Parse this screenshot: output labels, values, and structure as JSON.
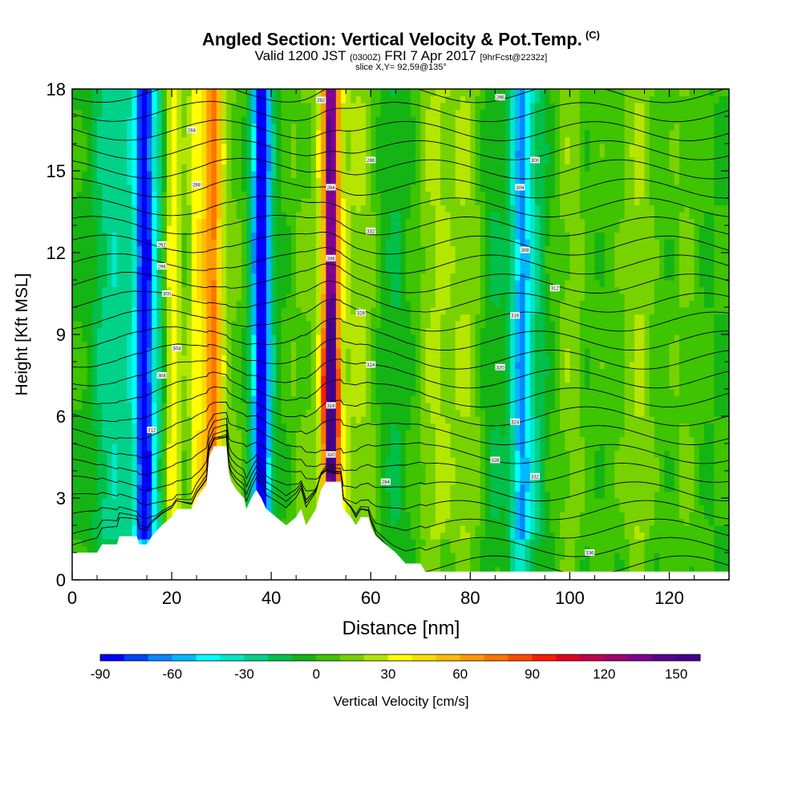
{
  "title": {
    "main": "Angled Section: Vertical Velocity & Pot.Temp.",
    "unit": "(C)",
    "valid_prefix": "Valid 1200 JST",
    "valid_small": "(0300Z)",
    "valid_date": "FRI 7 Apr 2017",
    "valid_fcst": "[9hrFcst@2232z]",
    "slice": "slice X,Y= 92,59@135°"
  },
  "chart_data": {
    "type": "heatmap",
    "xlabel": "Distance [nm]",
    "ylabel": "Height [Kft MSL]",
    "xlim": [
      0,
      132
    ],
    "ylim": [
      0,
      18
    ],
    "x_ticks": [
      "0",
      "20",
      "40",
      "60",
      "80",
      "100",
      "120"
    ],
    "x_tick_values": [
      0,
      20,
      40,
      60,
      80,
      100,
      120
    ],
    "y_ticks": [
      "0",
      "3",
      "6",
      "9",
      "12",
      "15",
      "18"
    ],
    "y_tick_values": [
      0,
      3,
      6,
      9,
      12,
      15,
      18
    ],
    "colorbar": {
      "label": "Vertical Velocity [cm/s]",
      "tick_labels": [
        "-90",
        "-60",
        "-30",
        "0",
        "30",
        "60",
        "90",
        "120",
        "150"
      ],
      "tick_values": [
        -90,
        -60,
        -30,
        0,
        30,
        60,
        90,
        120,
        150
      ],
      "min": -90,
      "max": 160,
      "step": 10,
      "colors": [
        "#0000ff",
        "#0040ff",
        "#0a86ff",
        "#00b8ff",
        "#00ffff",
        "#00e8c8",
        "#00d28a",
        "#00c04a",
        "#14b414",
        "#3ec400",
        "#78d200",
        "#b4e600",
        "#ffff00",
        "#ffdc00",
        "#ffbc00",
        "#ff9a00",
        "#ff7300",
        "#ff4800",
        "#ff1a00",
        "#e00020",
        "#c0004a",
        "#a00070",
        "#800090",
        "#5a0090",
        "#44008a"
      ]
    },
    "terrain_kft": [
      [
        0,
        1.0
      ],
      [
        5,
        1.0
      ],
      [
        6,
        1.3
      ],
      [
        9,
        1.3
      ],
      [
        9.5,
        1.6
      ],
      [
        13,
        1.6
      ],
      [
        13.5,
        1.3
      ],
      [
        15,
        1.3
      ],
      [
        16,
        1.6
      ],
      [
        18,
        2.0
      ],
      [
        20,
        2.3
      ],
      [
        21,
        2.6
      ],
      [
        24,
        2.6
      ],
      [
        25,
        3.0
      ],
      [
        27,
        3.5
      ],
      [
        27.5,
        4.5
      ],
      [
        28.5,
        4.9
      ],
      [
        31,
        4.9
      ],
      [
        31.5,
        3.9
      ],
      [
        32,
        3.6
      ],
      [
        33,
        3.3
      ],
      [
        34.5,
        3.0
      ],
      [
        35,
        2.6
      ],
      [
        36,
        3.0
      ],
      [
        37,
        3.3
      ],
      [
        38,
        3.0
      ],
      [
        39,
        2.6
      ],
      [
        41,
        2.3
      ],
      [
        43,
        2.0
      ],
      [
        45,
        2.3
      ],
      [
        46,
        2.6
      ],
      [
        47,
        2.0
      ],
      [
        48,
        2.3
      ],
      [
        49,
        2.6
      ],
      [
        50,
        3.3
      ],
      [
        51,
        3.6
      ],
      [
        54,
        3.6
      ],
      [
        54.5,
        2.6
      ],
      [
        56,
        2.3
      ],
      [
        57,
        2.0
      ],
      [
        58,
        2.3
      ],
      [
        59.5,
        2.3
      ],
      [
        60,
        2.0
      ],
      [
        61,
        1.6
      ],
      [
        63,
        1.3
      ],
      [
        65,
        1.0
      ],
      [
        67,
        0.6
      ],
      [
        70,
        0.6
      ],
      [
        71,
        0.3
      ],
      [
        132,
        0.3
      ]
    ],
    "bands": [
      {
        "x": 8,
        "width": 4,
        "value": -25
      },
      {
        "x": 14.5,
        "width": 1.5,
        "value": -55
      },
      {
        "x": 15,
        "width": 3.5,
        "value": -40
      },
      {
        "x": 20.5,
        "width": 2,
        "value": 45
      },
      {
        "x": 22,
        "width": 1.8,
        "value": -20
      },
      {
        "x": 25.5,
        "width": 3.5,
        "value": 35
      },
      {
        "x": 28.5,
        "width": 1.8,
        "value": 55
      },
      {
        "x": 32.5,
        "width": 2.5,
        "value": 10
      },
      {
        "x": 38,
        "width": 1.2,
        "value": -95
      },
      {
        "x": 38,
        "width": 2.2,
        "value": -55
      },
      {
        "x": 46,
        "width": 2.5,
        "value": 10
      },
      {
        "x": 52,
        "width": 2.8,
        "value": 55
      },
      {
        "x": 52,
        "width": 1.2,
        "value": 100
      },
      {
        "x": 58,
        "width": 3,
        "value": 20
      },
      {
        "x": 65,
        "width": 3,
        "value": -10
      },
      {
        "x": 73,
        "width": 4,
        "value": 20
      },
      {
        "x": 80,
        "width": 4,
        "value": 20
      },
      {
        "x": 84,
        "width": 3,
        "value": -15
      },
      {
        "x": 90,
        "width": 1.8,
        "value": -45
      },
      {
        "x": 92,
        "width": 3,
        "value": -25
      },
      {
        "x": 100,
        "width": 3,
        "value": 15
      },
      {
        "x": 108,
        "width": 3,
        "value": 5
      },
      {
        "x": 114,
        "width": 3,
        "value": 20
      },
      {
        "x": 123,
        "width": 3,
        "value": 10
      }
    ],
    "jets": [
      {
        "x": 52,
        "y": 6.8,
        "sx": 1.2,
        "sy": 1.8,
        "value": 125
      },
      {
        "x": 52,
        "y": 7.2,
        "sx": 0.6,
        "sy": 0.9,
        "value": 40
      },
      {
        "x": 38,
        "y": 13.5,
        "sx": 1.0,
        "sy": 2.5,
        "value": -20
      }
    ],
    "contour_labels": [
      "284",
      "288",
      "292",
      "296",
      "300",
      "304",
      "308",
      "312",
      "316",
      "320",
      "324",
      "328",
      "332",
      "336"
    ],
    "contour_label_positions": [
      [
        24,
        16.5
      ],
      [
        25,
        14.5
      ],
      [
        18,
        12.3
      ],
      [
        18,
        11.5
      ],
      [
        19,
        10.5
      ],
      [
        21,
        8.5
      ],
      [
        18,
        7.5
      ],
      [
        16,
        5.5
      ],
      [
        52,
        6.4
      ],
      [
        52,
        4.6
      ],
      [
        60,
        7.9
      ],
      [
        58,
        9.8
      ],
      [
        60,
        12.8
      ],
      [
        52,
        11.8
      ],
      [
        52,
        14.4
      ],
      [
        60,
        15.4
      ],
      [
        50,
        17.6
      ],
      [
        86,
        17.7
      ],
      [
        93,
        15.4
      ],
      [
        90,
        14.4
      ],
      [
        91,
        12.1
      ],
      [
        97,
        10.7
      ],
      [
        89,
        9.7
      ],
      [
        86,
        7.8
      ],
      [
        89,
        5.8
      ],
      [
        85,
        4.4
      ],
      [
        93,
        3.8
      ],
      [
        104,
        1.0
      ],
      [
        63,
        3.6
      ]
    ]
  }
}
